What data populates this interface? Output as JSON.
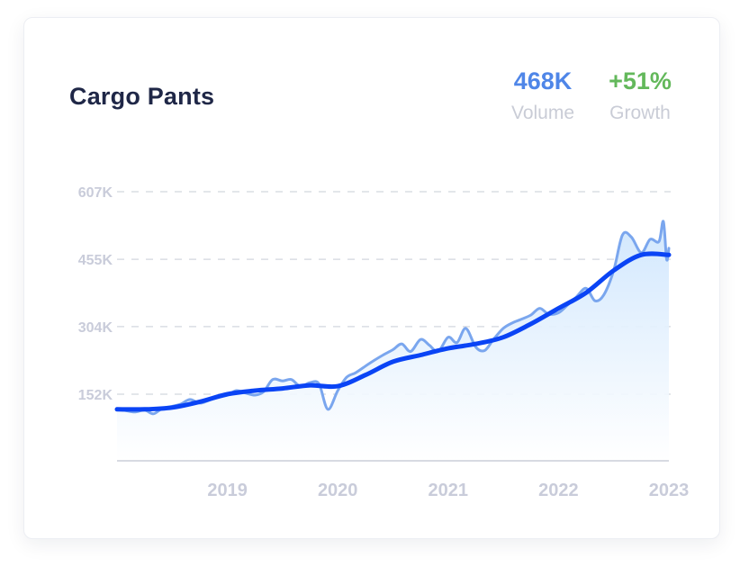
{
  "card": {
    "title": "Cargo Pants",
    "volume_value": "468K",
    "volume_label": "Volume",
    "growth_value": "+51%",
    "growth_label": "Growth"
  },
  "colors": {
    "volume": "#4f86e8",
    "growth": "#63b85b",
    "trend": "#0a44f5",
    "raw": "#7aa6ee",
    "area_top": "#cfe6fd",
    "grid": "#dadde4"
  },
  "chart_data": {
    "type": "line",
    "title": "",
    "xlabel": "",
    "ylabel": "",
    "x_range": [
      2018.0,
      2023.0
    ],
    "ylim": [
      50000,
      640000
    ],
    "y_ticks": [
      152000,
      304000,
      455000,
      607000
    ],
    "y_tick_labels": [
      "152K",
      "304K",
      "455K",
      "607K"
    ],
    "x_ticks": [
      2019,
      2020,
      2021,
      2022,
      2023
    ],
    "x_tick_labels": [
      "2019",
      "2020",
      "2021",
      "2022",
      "2023"
    ],
    "grid": "horizontal dashed",
    "area_fill": true,
    "series": [
      {
        "role": "raw",
        "x": [
          2018.0,
          2018.08,
          2018.16,
          2018.25,
          2018.33,
          2018.41,
          2018.5,
          2018.58,
          2018.66,
          2018.75,
          2018.83,
          2018.91,
          2019.0,
          2019.08,
          2019.16,
          2019.25,
          2019.33,
          2019.41,
          2019.5,
          2019.58,
          2019.66,
          2019.75,
          2019.83,
          2019.91,
          2020.0,
          2020.08,
          2020.16,
          2020.25,
          2020.33,
          2020.41,
          2020.5,
          2020.58,
          2020.66,
          2020.75,
          2020.83,
          2020.91,
          2021.0,
          2021.08,
          2021.16,
          2021.25,
          2021.33,
          2021.41,
          2021.5,
          2021.58,
          2021.66,
          2021.75,
          2021.83,
          2021.91,
          2022.0,
          2022.08,
          2022.16,
          2022.25,
          2022.33,
          2022.41,
          2022.5,
          2022.58,
          2022.66,
          2022.75,
          2022.83,
          2022.91,
          2022.95,
          2022.98,
          2023.0
        ],
        "y": [
          118000,
          115000,
          112000,
          116000,
          108000,
          120000,
          125000,
          130000,
          140000,
          132000,
          138000,
          145000,
          150000,
          160000,
          155000,
          150000,
          158000,
          185000,
          182000,
          185000,
          170000,
          178000,
          175000,
          118000,
          160000,
          190000,
          200000,
          215000,
          228000,
          240000,
          252000,
          265000,
          248000,
          275000,
          262000,
          248000,
          280000,
          268000,
          300000,
          258000,
          250000,
          275000,
          300000,
          312000,
          320000,
          330000,
          345000,
          332000,
          335000,
          352000,
          370000,
          390000,
          362000,
          375000,
          430000,
          510000,
          505000,
          470000,
          500000,
          495000,
          540000,
          455000,
          480000
        ]
      },
      {
        "role": "trend",
        "x": [
          2018.0,
          2018.25,
          2018.5,
          2018.75,
          2019.0,
          2019.25,
          2019.5,
          2019.75,
          2020.0,
          2020.25,
          2020.5,
          2020.75,
          2021.0,
          2021.25,
          2021.5,
          2021.75,
          2022.0,
          2022.25,
          2022.5,
          2022.75,
          2023.0
        ],
        "y": [
          118000,
          118000,
          122000,
          135000,
          152000,
          160000,
          165000,
          172000,
          170000,
          195000,
          225000,
          240000,
          255000,
          265000,
          280000,
          310000,
          345000,
          380000,
          430000,
          465000,
          465000
        ]
      }
    ]
  }
}
